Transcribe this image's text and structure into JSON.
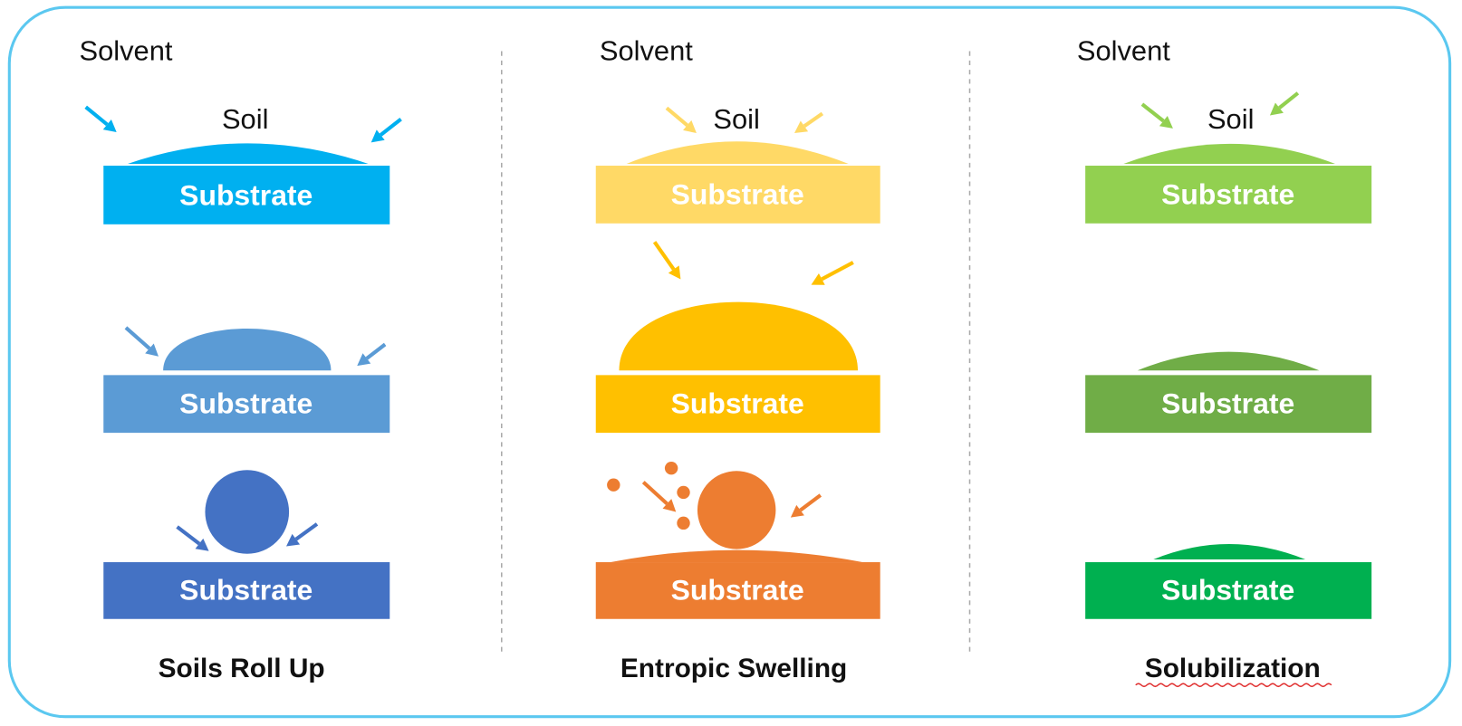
{
  "columns": [
    {
      "solvent": "Solvent",
      "soil": "Soil",
      "substrates": [
        "Substrate",
        "Substrate",
        "Substrate"
      ],
      "caption": "Soils Roll Up"
    },
    {
      "solvent": "Solvent",
      "soil": "Soil",
      "substrates": [
        "Substrate",
        "Substrate",
        "Substrate"
      ],
      "caption": "Entropic Swelling"
    },
    {
      "solvent": "Solvent",
      "soil": "Soil",
      "substrates": [
        "Substrate",
        "Substrate",
        "Substrate"
      ],
      "caption": "Solubilization"
    }
  ]
}
